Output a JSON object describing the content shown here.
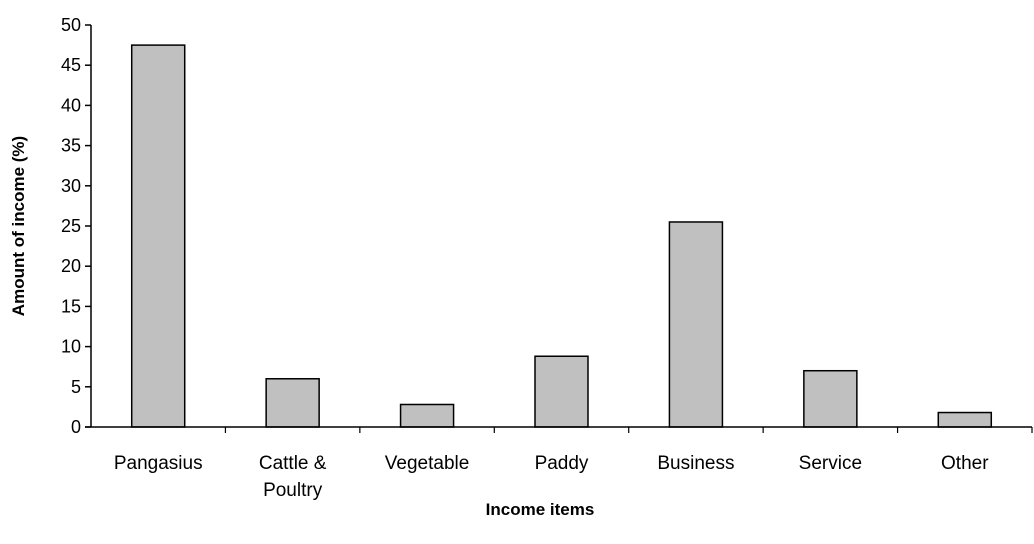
{
  "chart_data": {
    "type": "bar",
    "categories": [
      "Pangasius",
      "Cattle & Poultry",
      "Vegetable",
      "Paddy",
      "Business",
      "Service",
      "Other"
    ],
    "category_lines": [
      [
        "Pangasius"
      ],
      [
        "Cattle &",
        "Poultry"
      ],
      [
        "Vegetable"
      ],
      [
        "Paddy"
      ],
      [
        "Business"
      ],
      [
        "Service"
      ],
      [
        "Other"
      ]
    ],
    "values": [
      47.5,
      6,
      2.8,
      8.8,
      25.5,
      7,
      1.8
    ],
    "xlabel": "Income items",
    "ylabel": "Amount of income (%)",
    "ylim": [
      0,
      50
    ],
    "yticks": [
      0,
      5,
      10,
      15,
      20,
      25,
      30,
      35,
      40,
      45,
      50
    ],
    "grid": false,
    "legend": "none",
    "bar_color": "#c0c0c0",
    "bar_edge_color": "#000000"
  }
}
